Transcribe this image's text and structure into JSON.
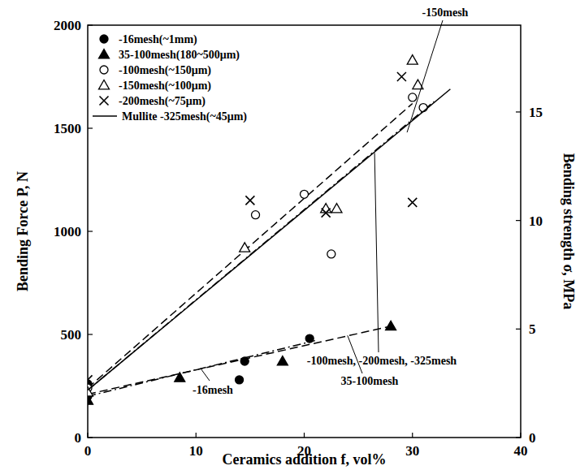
{
  "chart_data": {
    "type": "scatter",
    "x_label": "Ceramics addition  f, vol%",
    "y_label": "Bending Force  P, N",
    "y2_label": "Bending strength  σ, MPa",
    "xlim": [
      0,
      40
    ],
    "xticks": [
      0,
      10,
      20,
      30,
      40
    ],
    "ylim": [
      0,
      2000
    ],
    "yticks": [
      0,
      500,
      1000,
      1500,
      2000
    ],
    "y2lim": [
      0,
      19
    ],
    "y2ticks": [
      0,
      5,
      10,
      15
    ],
    "legend": "upper left",
    "series": [
      {
        "name": "-16mesh(~1mm)",
        "color": "#000000",
        "marker": "filled-circle",
        "x": [
          0,
          0,
          14,
          14.5,
          20.5
        ],
        "values": [
          260,
          200,
          280,
          370,
          480
        ]
      },
      {
        "name": "35-100mesh(180~500μm)",
        "color": "#000000",
        "marker": "filled-triangle",
        "x": [
          0,
          8.5,
          18,
          28
        ],
        "values": [
          180,
          290,
          370,
          540
        ]
      },
      {
        "name": "-100mesh(~150μm)",
        "color": "#000000",
        "marker": "open-circle",
        "x": [
          0,
          15.5,
          20,
          22.5,
          30,
          31
        ],
        "values": [
          240,
          1080,
          1180,
          890,
          1650,
          1600
        ]
      },
      {
        "name": "-150mesh(~100μm)",
        "color": "#000000",
        "marker": "open-triangle",
        "x": [
          0,
          14.5,
          22,
          23,
          30,
          30.5
        ],
        "values": [
          220,
          920,
          1110,
          1110,
          1830,
          1710
        ]
      },
      {
        "name": "-200mesh(~75μm)",
        "color": "#000000",
        "marker": "x",
        "x": [
          0,
          15,
          22,
          29,
          30
        ],
        "values": [
          280,
          1150,
          1090,
          1750,
          1140
        ]
      },
      {
        "name": "Mullite -325mesh(~45μm)",
        "color": "#000000",
        "type": "line",
        "line_style": "solid",
        "x": [
          0,
          33.5
        ],
        "values": [
          230,
          1690
        ]
      }
    ],
    "fit_lines": [
      {
        "x": [
          0,
          30
        ],
        "values": [
          240,
          1620
        ],
        "line_style": "dashed",
        "color": "#000000"
      },
      {
        "x": [
          0,
          32
        ],
        "values": [
          230,
          1630
        ],
        "line_style": "dashdot",
        "color": "#000000"
      },
      {
        "x": [
          0,
          28
        ],
        "values": [
          210,
          540
        ],
        "line_style": "dashed",
        "color": "#000000"
      },
      {
        "x": [
          0,
          21
        ],
        "values": [
          200,
          470
        ],
        "line_style": "dashdot",
        "color": "#000000"
      }
    ],
    "annotations": [
      {
        "text": "-150mesh",
        "x": 29.5,
        "y": 1480
      },
      {
        "text": "-100mesh, -200mesh, -325mesh",
        "x": 26.5,
        "y": 1380
      },
      {
        "text": "-16mesh",
        "x": 10.5,
        "y": 330
      },
      {
        "text": "35-100mesh",
        "x": 24,
        "y": 495
      }
    ]
  }
}
